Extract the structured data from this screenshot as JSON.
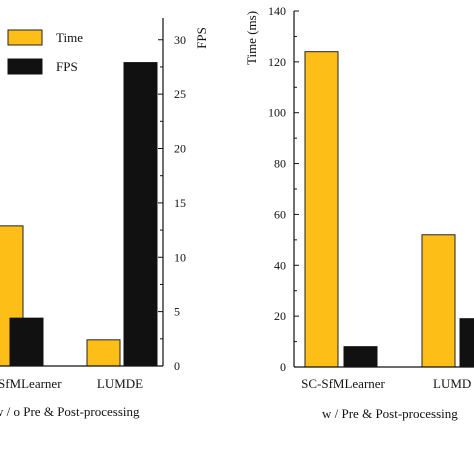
{
  "colors": {
    "time": "#FDBF17",
    "fps": "#111111"
  },
  "chart_data": [
    {
      "type": "bar",
      "categories": [
        "SC-SfMLearner",
        "LUMDE"
      ],
      "visible_category_labels": [
        "SfMLearner",
        "LUMDE"
      ],
      "xlabel": "w / o Pre & Post-processing",
      "y_right_label": "FPS",
      "y_right_ticks": [
        0,
        5,
        10,
        15,
        20,
        25,
        30
      ],
      "y_right_lim": [
        0,
        32
      ],
      "series": [
        {
          "name": "Time",
          "axis": "left",
          "values": [
            91,
            17
          ]
        },
        {
          "name": "FPS",
          "axis": "right",
          "values": [
            4.4,
            27.9
          ]
        }
      ],
      "legend": {
        "position": "top-left",
        "entries": [
          "Time",
          "FPS"
        ]
      }
    },
    {
      "type": "bar",
      "categories": [
        "SC-SfMLearner",
        "LUMDE"
      ],
      "visible_category_labels": [
        "SC-SfMLearner",
        "LUMD"
      ],
      "xlabel": "w / Pre & Post-processing",
      "ylabel": "Time (ms)",
      "ylim": [
        0,
        140
      ],
      "yticks": [
        0,
        20,
        40,
        60,
        80,
        100,
        120,
        140
      ],
      "series": [
        {
          "name": "Time",
          "values": [
            124,
            52
          ]
        },
        {
          "name": "FPS",
          "values": [
            8,
            19
          ]
        }
      ]
    }
  ]
}
